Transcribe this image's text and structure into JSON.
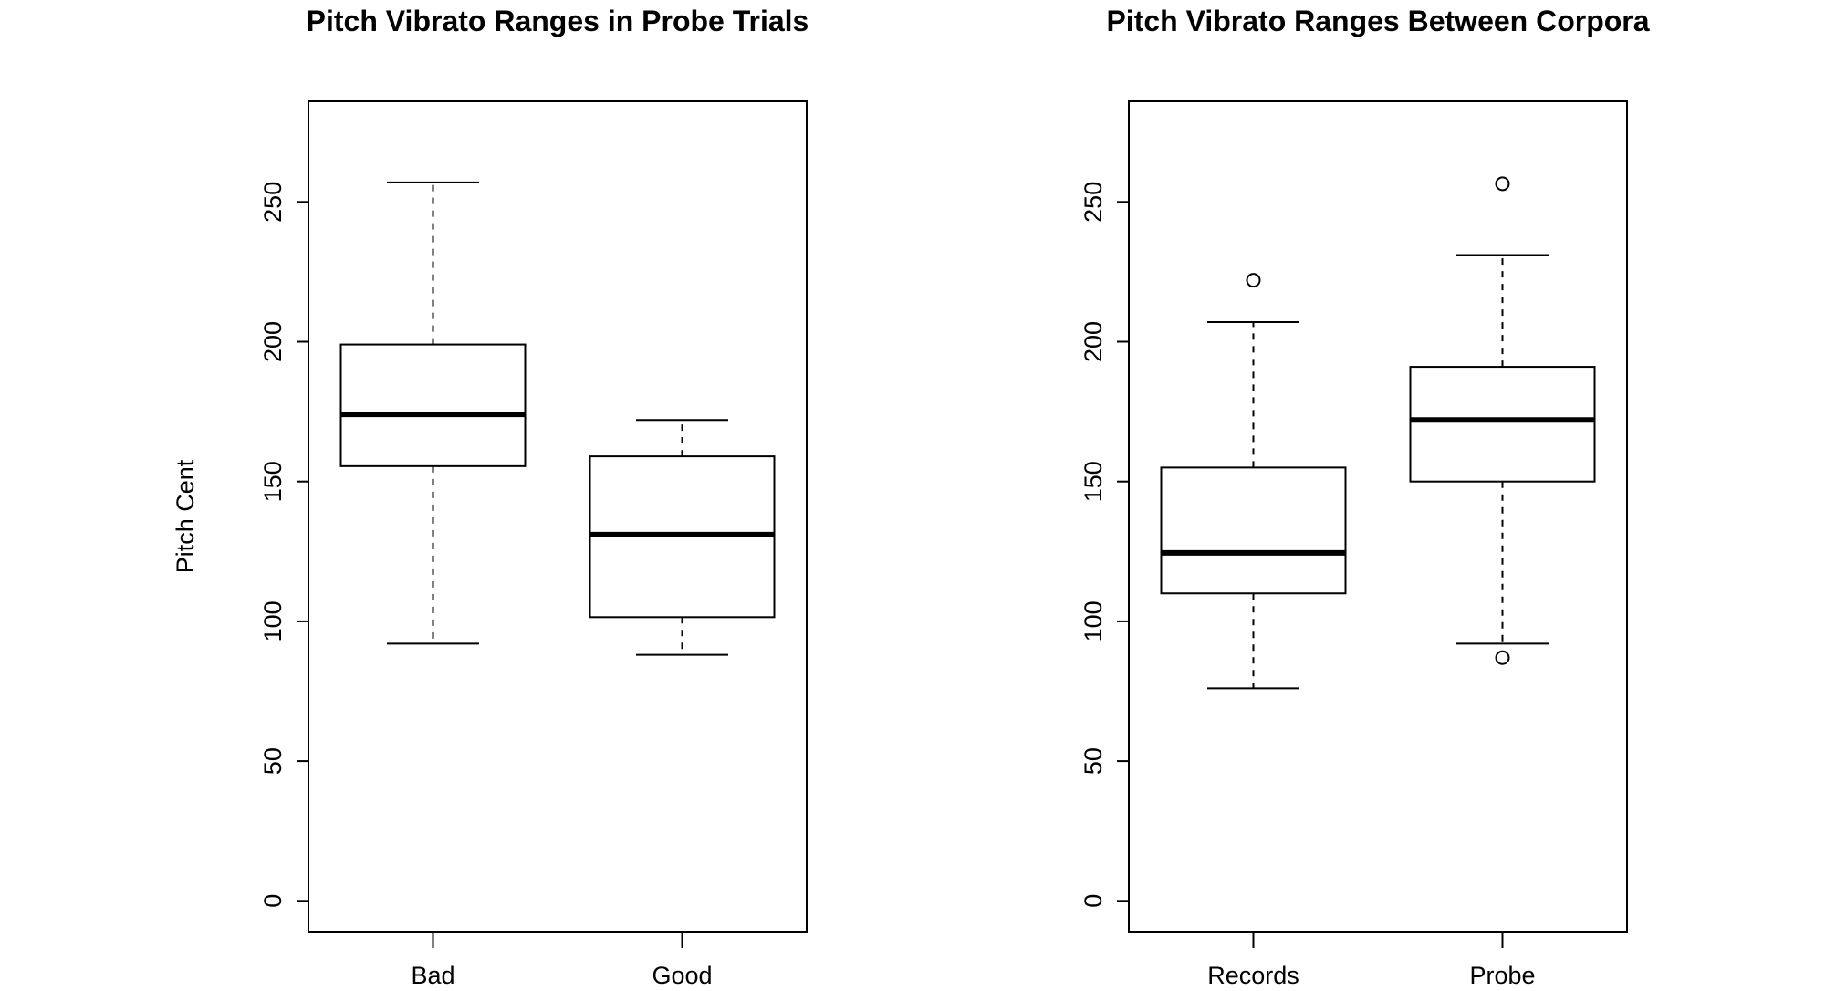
{
  "chart_data": [
    {
      "type": "box",
      "title": "Pitch Vibrato Ranges in Probe Trials",
      "xlabel": "",
      "ylabel": "Pitch Cent",
      "ylim": [
        -11,
        286
      ],
      "y_ticks": [
        0,
        50,
        100,
        150,
        200,
        250
      ],
      "categories": [
        "Bad",
        "Good"
      ],
      "boxes": [
        {
          "label": "Bad",
          "whisker_low": 92,
          "q1": 155.5,
          "median": 174,
          "q3": 199,
          "whisker_high": 257,
          "outliers": []
        },
        {
          "label": "Good",
          "whisker_low": 88,
          "q1": 101.5,
          "median": 131,
          "q3": 159,
          "whisker_high": 172,
          "outliers": []
        }
      ],
      "grid": false
    },
    {
      "type": "box",
      "title": "Pitch Vibrato Ranges Between Corpora",
      "xlabel": "",
      "ylabel": "",
      "ylim": [
        -11,
        286
      ],
      "y_ticks": [
        0,
        50,
        100,
        150,
        200,
        250
      ],
      "categories": [
        "Records",
        "Probe"
      ],
      "boxes": [
        {
          "label": "Records",
          "whisker_low": 76,
          "q1": 110,
          "median": 124.5,
          "q3": 155,
          "whisker_high": 207,
          "outliers": [
            222
          ]
        },
        {
          "label": "Probe",
          "whisker_low": 92,
          "q1": 150,
          "median": 172,
          "q3": 191,
          "whisker_high": 231,
          "outliers": [
            256.5,
            87
          ]
        }
      ],
      "grid": false
    }
  ]
}
